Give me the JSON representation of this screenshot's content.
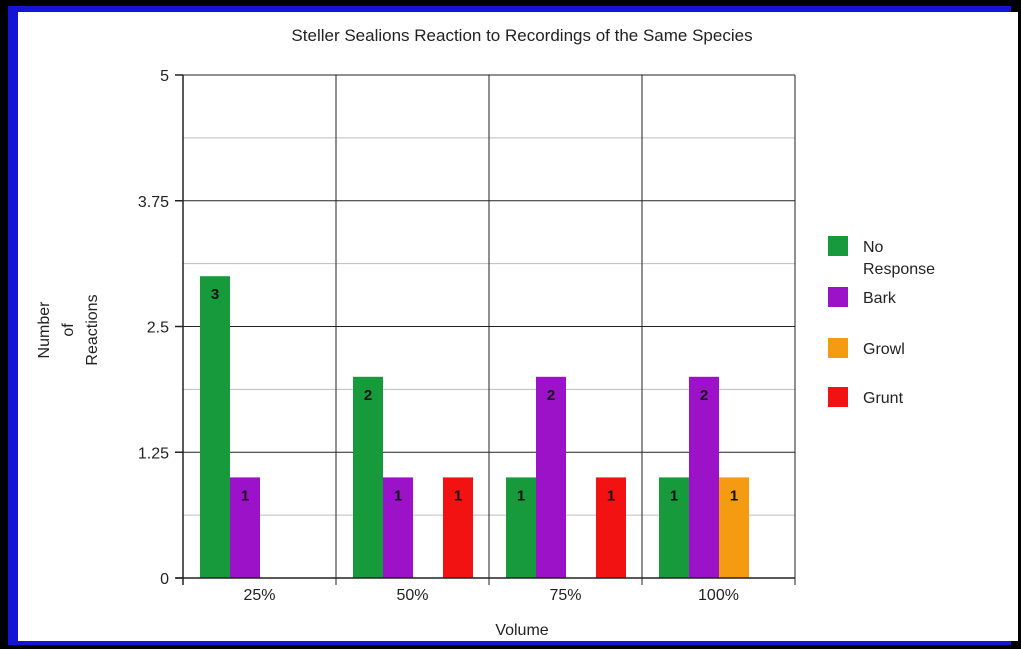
{
  "chart_data": {
    "type": "bar",
    "title": "Steller Sealions Reaction to Recordings of the Same Species",
    "xlabel": "Volume",
    "ylabel_lines": [
      "Number",
      "of",
      "Reactions"
    ],
    "categories": [
      "25%",
      "50%",
      "75%",
      "100%"
    ],
    "y_ticks": [
      "0",
      "1.25",
      "2.5",
      "3.75",
      "5"
    ],
    "ylim": [
      0,
      5
    ],
    "grid": true,
    "legend_position": "right",
    "series": [
      {
        "name": "No Response",
        "legend_lines": [
          "No",
          "Response"
        ],
        "color": "#169a3c",
        "values": [
          3,
          2,
          1,
          1
        ]
      },
      {
        "name": "Bark",
        "legend_lines": [
          "Bark"
        ],
        "color": "#9c12c8",
        "values": [
          1,
          1,
          2,
          2
        ]
      },
      {
        "name": "Growl",
        "legend_lines": [
          "Growl"
        ],
        "color": "#f59b12",
        "values": [
          0,
          0,
          0,
          1
        ]
      },
      {
        "name": "Grunt",
        "legend_lines": [
          "Grunt"
        ],
        "color": "#f21212",
        "values": [
          0,
          1,
          1,
          0
        ]
      }
    ]
  }
}
